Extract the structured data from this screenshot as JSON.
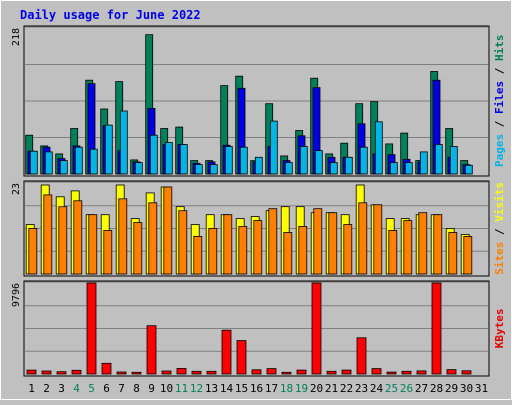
{
  "chart_data": {
    "type": "bar",
    "title": "Daily usage for June 2022",
    "categories": [
      "1",
      "2",
      "3",
      "4",
      "5",
      "6",
      "7",
      "8",
      "9",
      "10",
      "11",
      "12",
      "13",
      "14",
      "15",
      "16",
      "17",
      "18",
      "19",
      "20",
      "21",
      "22",
      "23",
      "24",
      "25",
      "26",
      "27",
      "28",
      "29",
      "30",
      "31"
    ],
    "weekend_days": [
      "4",
      "5",
      "11",
      "12",
      "18",
      "19",
      "25",
      "26"
    ],
    "panels": [
      {
        "name": "hits-files-pages",
        "max_label": "218",
        "ylim": [
          0,
          218
        ],
        "side_labels": [
          {
            "text": "Pages",
            "color": "#00b4e6"
          },
          {
            "text": " / ",
            "color": "#000000"
          },
          {
            "text": "Files",
            "color": "#0000e6"
          },
          {
            "text": " / ",
            "color": "#000000"
          },
          {
            "text": "Hits",
            "color": "#00805a"
          }
        ],
        "series": [
          {
            "name": "Hits",
            "color": "#00805a",
            "values": [
              58,
              42,
              30,
              68,
              140,
              97,
              138,
              21,
              208,
              68,
              70,
              20,
              20,
              132,
              146,
              20,
              105,
              27,
              65,
              143,
              30,
              46,
              105,
              108,
              45,
              61,
              20,
              153,
              68,
              20
            ]
          },
          {
            "name": "Files",
            "color": "#0000e6",
            "values": [
              34,
              40,
              23,
              42,
              135,
              72,
              35,
              18,
              98,
              44,
              44,
              16,
              18,
              43,
              128,
              18,
              41,
              20,
              57,
              129,
              25,
              25,
              75,
              30,
              29,
              22,
              18,
              140,
              25,
              14
            ]
          },
          {
            "name": "Pages",
            "color": "#00b4e6",
            "values": [
              34,
              33,
              20,
              40,
              37,
              73,
              94,
              17,
              58,
              47,
              44,
              14,
              14,
              41,
              40,
              25,
              79,
              17,
              41,
              35,
              17,
              25,
              40,
              78,
              17,
              17,
              33,
              44,
              41,
              13
            ]
          }
        ]
      },
      {
        "name": "visits-sites",
        "max_label": "23",
        "ylim": [
          0,
          23
        ],
        "side_labels": [
          {
            "text": "Sites",
            "color": "#ff8000"
          },
          {
            "text": " / ",
            "color": "#000000"
          },
          {
            "text": "Visits",
            "color": "#ffff00"
          }
        ],
        "series": [
          {
            "name": "Visits",
            "color": "#ffff00",
            "values": [
              12.5,
              22.5,
              19.5,
              21.0,
              15.0,
              15.0,
              22.5,
              14.0,
              20.5,
              22.0,
              17.0,
              12.5,
              15.0,
              15.0,
              14.0,
              14.5,
              16.0,
              17.0,
              17.0,
              15.5,
              15.5,
              15.0,
              22.5,
              17.5,
              14.0,
              14.0,
              15.0,
              15.0,
              11.5,
              10.0
            ]
          },
          {
            "name": "Sites",
            "color": "#ff8000",
            "values": [
              11.5,
              20.0,
              17.0,
              18.5,
              15.0,
              11.0,
              19.0,
              13.0,
              18.0,
              22.0,
              16.0,
              9.5,
              11.5,
              15.0,
              12.0,
              13.5,
              16.5,
              10.5,
              12.0,
              16.5,
              15.5,
              12.5,
              18.0,
              17.5,
              11.0,
              13.5,
              15.5,
              15.0,
              10.5,
              9.5
            ]
          }
        ]
      },
      {
        "name": "kbytes",
        "max_label": "9796",
        "ylim": [
          0,
          9796
        ],
        "side_labels": [
          {
            "text": "KBytes",
            "color": "#e60000"
          }
        ],
        "series": [
          {
            "name": "KBytes",
            "color": "#ff0000",
            "values": [
              420,
              320,
              250,
              400,
              9796,
              1150,
              210,
              180,
              5200,
              320,
              600,
              290,
              290,
              4720,
              3600,
              450,
              580,
              180,
              420,
              9796,
              290,
              420,
              3900,
              580,
              200,
              290,
              330,
              9796,
              470,
              340
            ]
          }
        ]
      }
    ]
  }
}
